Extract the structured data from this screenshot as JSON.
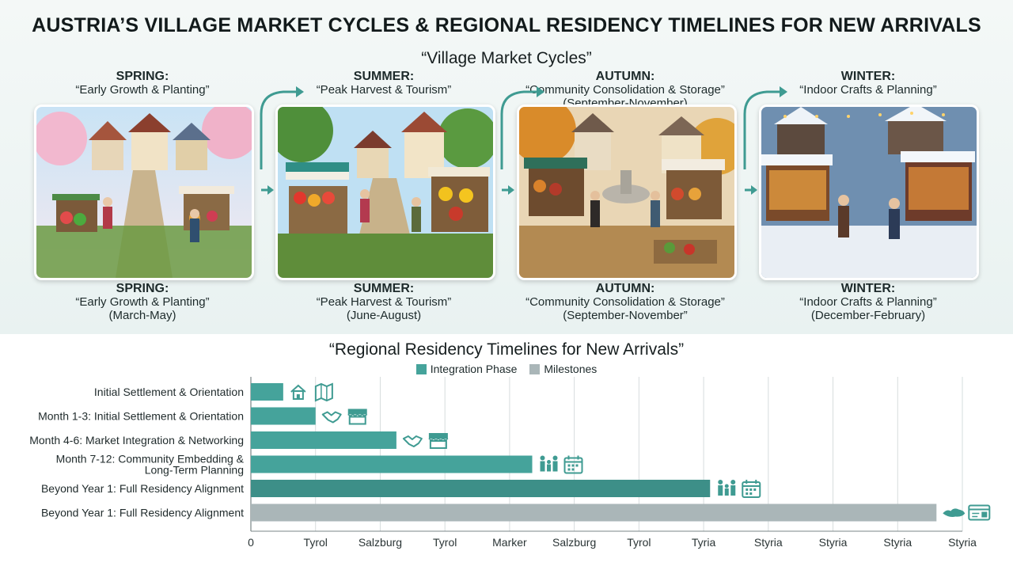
{
  "title": "AUSTRIA’S VILLAGE MARKET CYCLES & REGIONAL RESIDENCY TIMELINES FOR NEW ARRIVALS",
  "market_section_title": "“Village Market Cycles”",
  "seasons": [
    {
      "top_name": "SPRING:",
      "top_sub": "“Early Growth & Planting”",
      "top_months": "",
      "bottom_name": "SPRING:",
      "bottom_sub": "“Early Growth & Planting”",
      "bottom_months": "(March-May)",
      "scene": "spring-market-scene"
    },
    {
      "top_name": "SUMMER:",
      "top_sub": "“Peak Harvest & Tourism”",
      "top_months": "",
      "bottom_name": "SUMMER:",
      "bottom_sub": "“Peak Harvest & Tourism”",
      "bottom_months": "(June-August)",
      "scene": "summer-market-scene"
    },
    {
      "top_name": "AUTUMN:",
      "top_sub": "“Community Consolidation & Storage”",
      "top_months": "(September-November)",
      "bottom_name": "AUTUMN:",
      "bottom_sub": "“Community Consolidation & Storage”",
      "bottom_months": "(September-November”",
      "scene": "autumn-market-scene"
    },
    {
      "top_name": "WINTER:",
      "top_sub": "“Indoor Crafts & Planning”",
      "top_months": "",
      "bottom_name": "WINTER:",
      "bottom_sub": "“Indoor Crafts & Planning”",
      "bottom_months": "(December-February)",
      "scene": "winter-market-scene"
    }
  ],
  "chart_data": {
    "type": "bar",
    "orientation": "horizontal",
    "title": "“Regional Residency Timelines for New Arrivals”",
    "legend": [
      {
        "label": "Integration Phase",
        "color": "#45a39b"
      },
      {
        "label": "Milestones",
        "color": "#aab6b8"
      }
    ],
    "legend_position": "top-center",
    "grid": true,
    "x_tick_labels": [
      "0",
      "Tyrol",
      "Salzburg",
      "Tyrol",
      "Marker",
      "Salzburg",
      "Tyrol",
      "Tyria",
      "Styria",
      "Styria",
      "Styria",
      "Styria"
    ],
    "xlim": [
      0,
      11
    ],
    "rows": [
      {
        "label": "Initial Settlement & Orientation",
        "value": 0.5,
        "series": "Integration Phase",
        "color": "#45a39b",
        "icons": [
          "house-icon",
          "map-icon"
        ]
      },
      {
        "label": "Month 1-3: Initial Settlement & Orientation",
        "value": 1.0,
        "series": "Integration Phase",
        "color": "#45a39b",
        "icons": [
          "handshake-icon",
          "market-stall-icon"
        ]
      },
      {
        "label": "Month 4-6: Market Integration & Networking",
        "value": 2.25,
        "series": "Integration Phase",
        "color": "#45a39b",
        "icons": [
          "handshake-icon",
          "market-stall-icon"
        ]
      },
      {
        "label": "Month 7-12: Community Embedding & Long-Term Planning",
        "value": 4.35,
        "series": "Integration Phase",
        "color": "#45a39b",
        "icons": [
          "family-icon",
          "calendar-icon"
        ]
      },
      {
        "label": "Beyond Year 1: Full Residency Alignment",
        "value": 7.1,
        "series": "Integration Phase",
        "color": "#3d8f88",
        "icons": [
          "family-icon",
          "calendar-icon"
        ]
      },
      {
        "label": "Beyond Year 1: Full Residency Alignment",
        "value": 10.6,
        "series": "Milestones",
        "color": "#aab6b8",
        "icons": [
          "austria-map-icon",
          "residence-card-icon"
        ]
      }
    ]
  }
}
